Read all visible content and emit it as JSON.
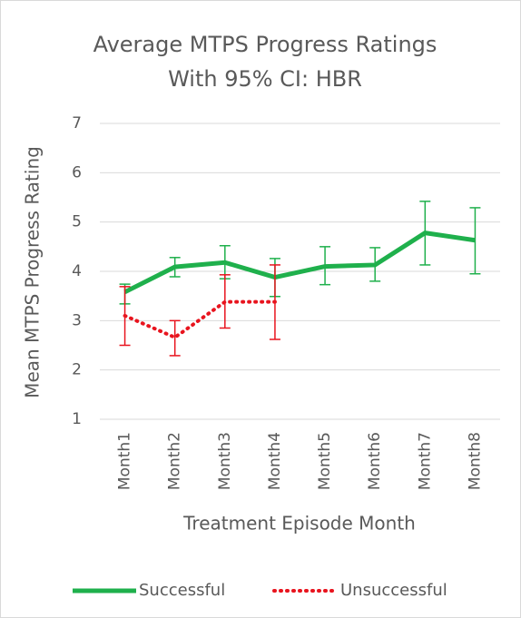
{
  "chart_data": {
    "type": "line",
    "title": [
      "Average MTPS Progress Ratings",
      "With 95% CI: HBR"
    ],
    "x_label": "Treatment Episode Month",
    "y_label": "Mean MTPS Progress Rating",
    "categories": [
      "Month1",
      "Month2",
      "Month3",
      "Month4",
      "Month5",
      "Month6",
      "Month7",
      "Month8"
    ],
    "series": [
      {
        "name": "Successful",
        "color": "#1fb04c",
        "style": "solid",
        "values": [
          3.58,
          4.09,
          4.18,
          3.88,
          4.1,
          4.13,
          4.78,
          4.63
        ],
        "lower": [
          3.34,
          3.89,
          3.85,
          3.49,
          3.73,
          3.8,
          4.13,
          3.95
        ],
        "upper": [
          3.74,
          4.28,
          4.52,
          4.26,
          4.5,
          4.48,
          5.42,
          5.29
        ]
      },
      {
        "name": "Unsuccessful",
        "color": "#e8141e",
        "style": "dotted",
        "values": [
          3.1,
          2.66,
          3.38,
          3.38,
          null,
          null,
          null,
          null
        ],
        "lower": [
          2.5,
          2.29,
          2.85,
          2.62,
          null,
          null,
          null,
          null
        ],
        "upper": [
          3.69,
          3.0,
          3.93,
          4.13,
          null,
          null,
          null,
          null
        ]
      }
    ],
    "ylim": [
      1,
      7
    ],
    "yticks": [
      1,
      2,
      3,
      4,
      5,
      6,
      7
    ],
    "grid": true,
    "legend": "bottom"
  }
}
